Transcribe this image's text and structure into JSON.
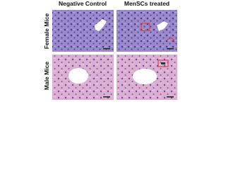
{
  "columns": [
    "Negative Control",
    "MenSCs treated"
  ],
  "rows": [
    "Female Mice",
    "Male Mice"
  ]
}
